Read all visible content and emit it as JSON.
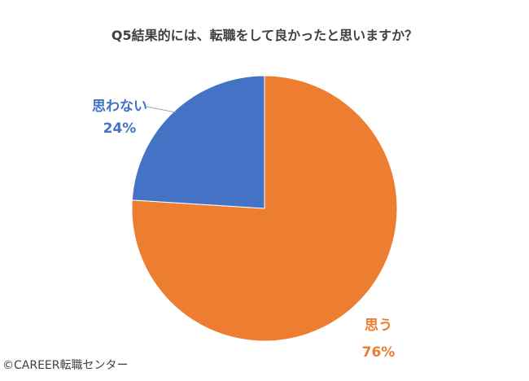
{
  "chart_data": {
    "type": "pie",
    "title": "Q5結果的には、転職をして良かったと思いますか？",
    "slices": [
      {
        "label": "思う",
        "value": 76,
        "value_label": "76%",
        "color": "#ED7D31"
      },
      {
        "label": "思わない",
        "value": 24,
        "value_label": "24%",
        "color": "#4472C4"
      }
    ],
    "start_angle_deg": 0,
    "direction": "clockwise",
    "legend": "none"
  },
  "footer": {
    "copyright": "©CAREER転職センター"
  }
}
